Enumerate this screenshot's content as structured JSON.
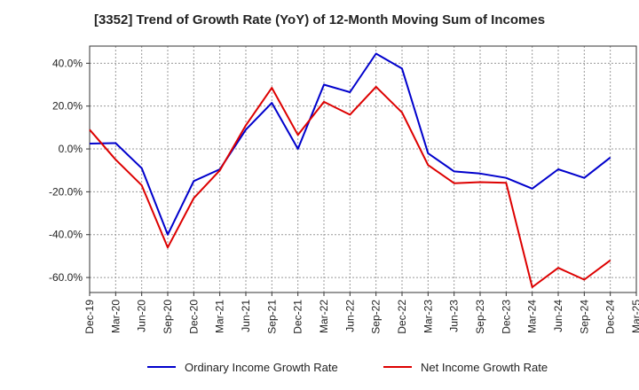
{
  "chart_data": {
    "type": "line",
    "title": "[3352]  Trend of Growth Rate (YoY) of 12-Month Moving Sum of Incomes",
    "xlabel": "",
    "ylabel": "",
    "x_tick_labels": [
      "Dec-19",
      "Mar-20",
      "Jun-20",
      "Sep-20",
      "Dec-20",
      "Mar-21",
      "Jun-21",
      "Sep-21",
      "Dec-21",
      "Mar-22",
      "Jun-22",
      "Sep-22",
      "Dec-22",
      "Mar-23",
      "Jun-23",
      "Sep-23",
      "Dec-23",
      "Mar-24",
      "Jun-24",
      "Sep-24",
      "Dec-24",
      "Mar-25"
    ],
    "y_tick_labels": [
      "40.0%",
      "20.0%",
      "0.0%",
      "-20.0%",
      "-40.0%",
      "-60.0%"
    ],
    "y_ticks": [
      40,
      20,
      0,
      -20,
      -40,
      -60
    ],
    "ylim": [
      -67,
      48
    ],
    "grid": true,
    "legend_position": "bottom",
    "series": [
      {
        "name": "Ordinary Income Growth Rate",
        "color": "#0000cc",
        "values": [
          2.5,
          2.7,
          -9.0,
          -40.0,
          -15.0,
          -9.5,
          9.0,
          21.5,
          0.0,
          30.0,
          26.5,
          44.5,
          37.5,
          -2.0,
          -10.5,
          -11.5,
          -13.5,
          -18.5,
          -9.5,
          -13.5,
          -4.0,
          null
        ]
      },
      {
        "name": "Net Income Growth Rate",
        "color": "#dd0000",
        "values": [
          9.0,
          -5.0,
          -17.0,
          -46.0,
          -23.0,
          -10.0,
          11.0,
          28.5,
          6.5,
          22.0,
          16.0,
          29.0,
          17.0,
          -7.5,
          -16.0,
          -15.5,
          -15.8,
          -64.5,
          -55.5,
          -61.0,
          -52.0,
          null
        ]
      }
    ]
  }
}
